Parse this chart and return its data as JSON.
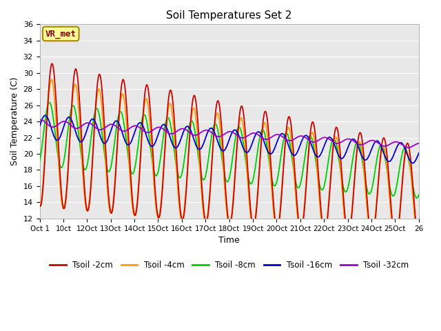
{
  "title": "Soil Temperatures Set 2",
  "xlabel": "Time",
  "ylabel": "Soil Temperature (C)",
  "ylim": [
    12,
    36
  ],
  "yticks": [
    12,
    14,
    16,
    18,
    20,
    22,
    24,
    26,
    28,
    30,
    32,
    34,
    36
  ],
  "bg_color": "#e8e8e8",
  "fig_color": "#ffffff",
  "series_colors": [
    "#cc0000",
    "#ff9900",
    "#00cc00",
    "#0000cc",
    "#9900cc"
  ],
  "series_labels": [
    "Tsoil -2cm",
    "Tsoil -4cm",
    "Tsoil -8cm",
    "Tsoil -16cm",
    "Tsoil -32cm"
  ],
  "annotation_text": "VR_met",
  "annotation_color": "#8b0000",
  "annotation_bg": "#ffff99",
  "xtick_labels": [
    "Oct 1",
    "10ct",
    "12Oct",
    "13Oct",
    "14Oct",
    "15Oct",
    "16Oct",
    "17Oct",
    "18Oct",
    "19Oct",
    "20Oct",
    "21Oct",
    "22Oct",
    "23Oct",
    "24Oct",
    "25Oct",
    "26"
  ],
  "n_points": 800,
  "n_days": 16
}
